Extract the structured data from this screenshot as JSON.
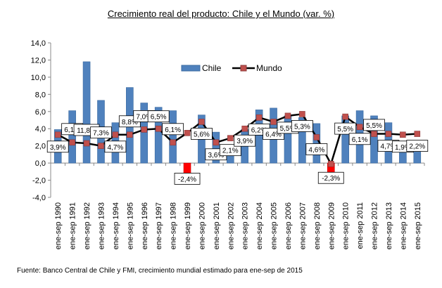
{
  "title": "Crecimiento real del producto: Chile y el Mundo (var. %)",
  "footer": "Fuente: Banco Central de Chile y FMI, crecimiento mundial estimado para ene-sep de 2015",
  "chart_data": {
    "type": "bar",
    "title": "Crecimiento real del producto: Chile y el Mundo (var. %)",
    "categories": [
      "ene-sep 1990",
      "ene-sep 1991",
      "ene-sep 1992",
      "ene-sep 1993",
      "ene-sep 1994",
      "ene-sep 1995",
      "ene-sep 1996",
      "ene-sep 1997",
      "ene-sep 1998",
      "ene-sep 1999",
      "ene-sep 2000",
      "ene-sep 2001",
      "ene-sep 2002",
      "ene-sep 2003",
      "ene-sep 2004",
      "ene-sep 2005",
      "ene-sep 2006",
      "ene-sep 2007",
      "ene-sep 2008",
      "ene-sep 2009",
      "ene-sep 2010",
      "ene-sep 2011",
      "ene-sep 2012",
      "ene-sep 2013",
      "ene-sep 2014",
      "ene-sep 2015"
    ],
    "series": [
      {
        "name": "Chile",
        "type": "bar",
        "color": "#4f81bd",
        "negative_color": "#ff0000",
        "values": [
          3.9,
          6.1,
          11.8,
          7.3,
          4.7,
          8.8,
          7.0,
          6.5,
          6.1,
          -2.4,
          5.6,
          3.6,
          2.1,
          3.9,
          6.2,
          6.4,
          5.5,
          5.3,
          4.6,
          -2.3,
          5.5,
          6.1,
          5.5,
          4.7,
          1.9,
          2.2
        ],
        "labels": [
          "3,9%",
          "6,1%",
          "11,8%",
          "7,3%",
          "4,7%",
          "8,8%",
          "7,0%",
          "6,5%",
          "6,1%",
          "-2,4%",
          "5,6%",
          "3,6%",
          "2,1%",
          "3,9%",
          "6,2%",
          "6,4%",
          "5,5%",
          "5,3%",
          "4,6%",
          "-2,3%",
          "5,5%",
          "6,1%",
          "5,5%",
          "4,7%",
          "1,9%",
          "2,2%"
        ]
      },
      {
        "name": "Mundo",
        "type": "line",
        "color": "#000000",
        "marker_color": "#c0504d",
        "values": [
          3.3,
          2.4,
          2.3,
          2.0,
          3.3,
          3.3,
          3.9,
          4.0,
          2.4,
          3.5,
          4.8,
          2.4,
          2.9,
          4.0,
          5.3,
          4.8,
          5.5,
          5.7,
          3.0,
          -0.1,
          5.4,
          4.2,
          3.4,
          3.4,
          3.3,
          3.4
        ]
      }
    ],
    "ylim": [
      -4,
      14
    ],
    "yticks": [
      "-4,0",
      "-2,0",
      "0,0",
      "2,0",
      "4,0",
      "6,0",
      "8,0",
      "10,0",
      "12,0",
      "14,0"
    ],
    "grid": false,
    "legend": "top-center"
  }
}
